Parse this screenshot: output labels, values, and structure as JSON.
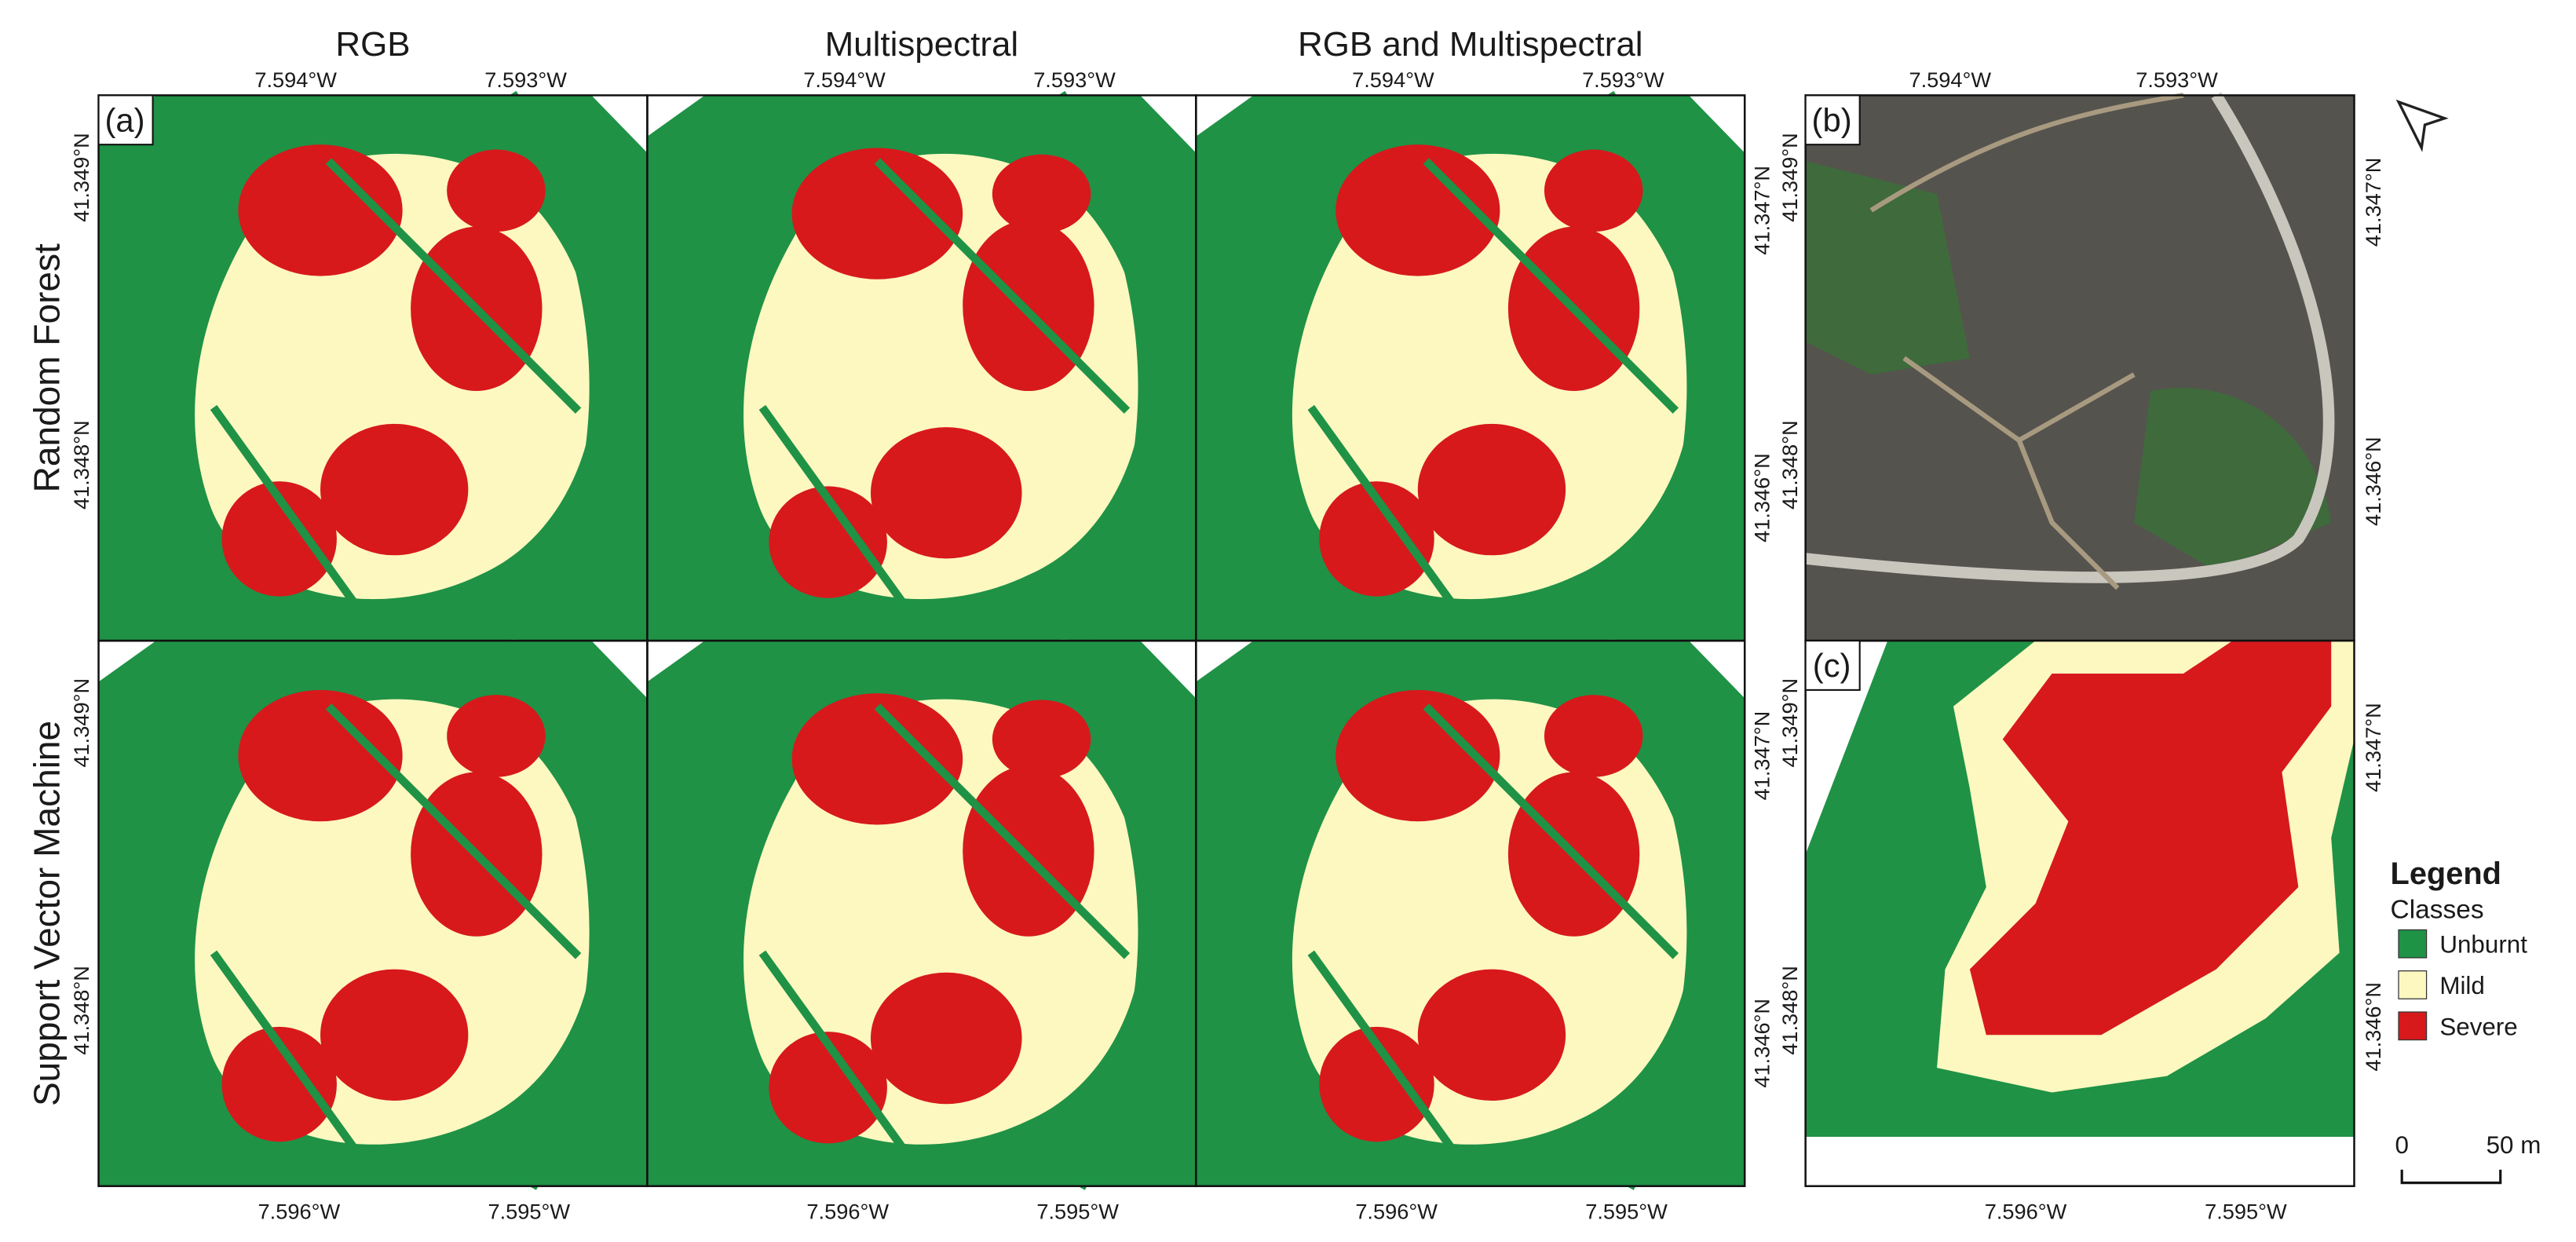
{
  "columns": [
    "RGB",
    "Multispectral",
    "RGB and Multispectral"
  ],
  "rows": [
    "Random Forest",
    "Support Vector Machine"
  ],
  "panel_labels": [
    "(a)",
    "(b)",
    "(c)"
  ],
  "top_lon_labels": [
    "7.594°W",
    "7.593°W"
  ],
  "bottom_lon_labels": [
    "7.596°W",
    "7.595°W"
  ],
  "left_lat_labels": [
    "41.349°N",
    "41.348°N"
  ],
  "right_lat_labels": [
    "41.347°N",
    "41.346°N"
  ],
  "legend": {
    "title": "Legend",
    "subtitle": "Classes",
    "items": [
      {
        "label": "Unburnt",
        "color": "#1f9246"
      },
      {
        "label": "Mild",
        "color": "#fdf8c0"
      },
      {
        "label": "Severe",
        "color": "#d7191c"
      }
    ]
  },
  "scale_bar": {
    "start": "0",
    "end": "50 m"
  }
}
